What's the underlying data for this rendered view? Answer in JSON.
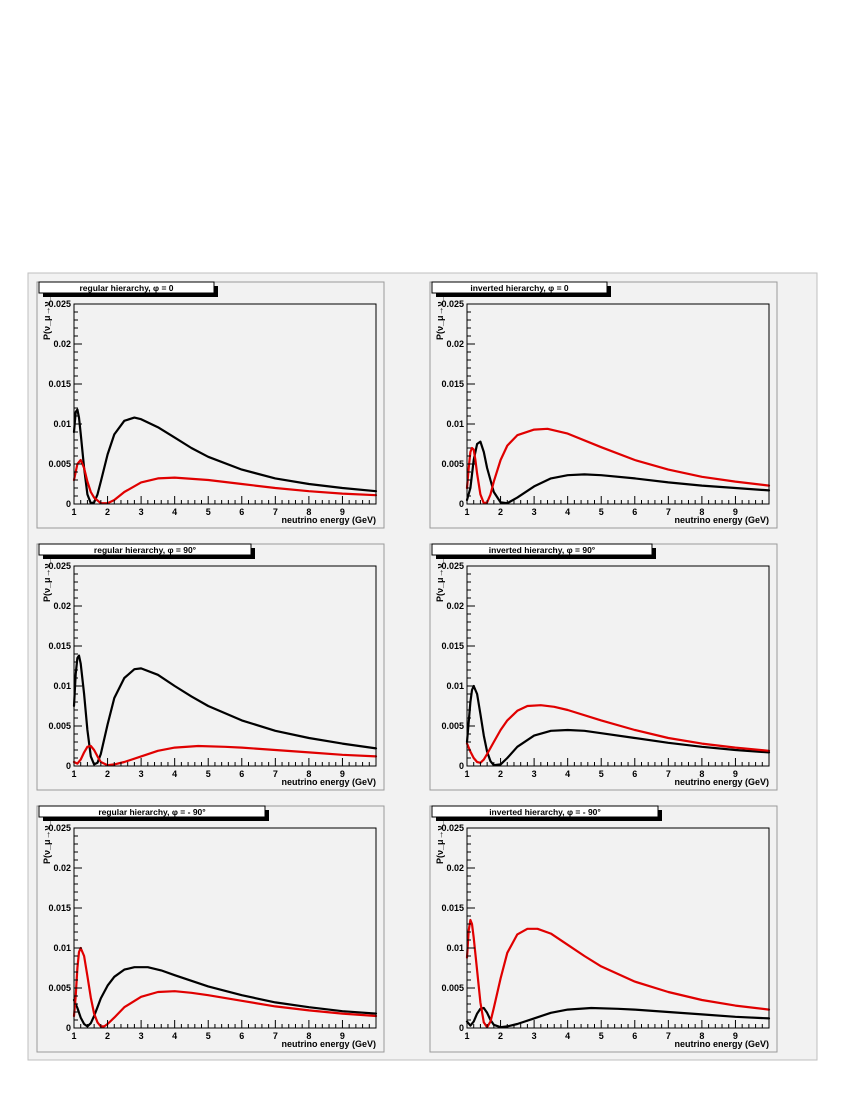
{
  "shared_axes": {
    "xlabel": "neutrino energy (GeV)",
    "ylabel": "P(ν_μ→ν_e)",
    "xlim": [
      1,
      10
    ],
    "ylim": [
      0,
      0.025
    ],
    "x_ticks": [
      "1",
      "2",
      "3",
      "4",
      "5",
      "6",
      "7",
      "8",
      "9"
    ],
    "y_ticks": [
      "0",
      "0.005",
      "0.01",
      "0.015",
      "0.02",
      "0.025"
    ],
    "series_colors": {
      "black": "#000000",
      "red": "#e00000"
    }
  },
  "chart_data": [
    {
      "type": "line",
      "title": "regular hierarchy, φ = 0",
      "xlabel": "neutrino energy (GeV)",
      "ylabel": "P(ν_μ→ν_e)",
      "xlim": [
        1,
        10
      ],
      "ylim": [
        0,
        0.025
      ],
      "series": [
        {
          "color": "#000000",
          "x": [
            1.0,
            1.05,
            1.1,
            1.15,
            1.2,
            1.3,
            1.4,
            1.5,
            1.6,
            1.7,
            1.8,
            2.0,
            2.2,
            2.5,
            2.8,
            3.0,
            3.5,
            4.0,
            4.5,
            5,
            6,
            7,
            8,
            9,
            10
          ],
          "y": [
            0.009,
            0.0115,
            0.0118,
            0.0108,
            0.0088,
            0.0045,
            0.0012,
            0.0001,
            0.0002,
            0.0012,
            0.0028,
            0.0062,
            0.0087,
            0.0104,
            0.0108,
            0.0106,
            0.0096,
            0.0083,
            0.007,
            0.0059,
            0.0043,
            0.0032,
            0.0025,
            0.002,
            0.0016
          ]
        },
        {
          "color": "#e00000",
          "x": [
            1.0,
            1.1,
            1.2,
            1.3,
            1.4,
            1.5,
            1.6,
            1.8,
            2.0,
            2.2,
            2.5,
            3.0,
            3.5,
            4.0,
            5,
            6,
            7,
            8,
            9,
            10
          ],
          "y": [
            0.003,
            0.005,
            0.0055,
            0.0045,
            0.0028,
            0.0015,
            0.0008,
            0.0001,
            0.0001,
            0.0005,
            0.0015,
            0.0027,
            0.0032,
            0.0033,
            0.003,
            0.0025,
            0.002,
            0.0016,
            0.0013,
            0.0011
          ]
        }
      ]
    },
    {
      "type": "line",
      "title": "inverted hierarchy, φ = 0",
      "xlabel": "neutrino energy (GeV)",
      "ylabel": "P(ν_μ→ν_e)",
      "xlim": [
        1,
        10
      ],
      "ylim": [
        0,
        0.025
      ],
      "series": [
        {
          "color": "#000000",
          "x": [
            1.0,
            1.1,
            1.2,
            1.3,
            1.4,
            1.5,
            1.6,
            1.8,
            2.0,
            2.2,
            2.5,
            3.0,
            3.5,
            4.0,
            4.5,
            5,
            6,
            7,
            8,
            9,
            10
          ],
          "y": [
            0.0005,
            0.002,
            0.0055,
            0.0075,
            0.0078,
            0.0065,
            0.0045,
            0.0015,
            0.0002,
            0.0001,
            0.0008,
            0.0022,
            0.0032,
            0.0036,
            0.0037,
            0.0036,
            0.0032,
            0.0027,
            0.0023,
            0.002,
            0.0017
          ]
        },
        {
          "color": "#e00000",
          "x": [
            1.0,
            1.05,
            1.1,
            1.15,
            1.2,
            1.25,
            1.3,
            1.4,
            1.5,
            1.6,
            1.7,
            1.8,
            2.0,
            2.2,
            2.5,
            3.0,
            3.4,
            4.0,
            5,
            6,
            7,
            8,
            9,
            10
          ],
          "y": [
            0.002,
            0.0045,
            0.0065,
            0.007,
            0.0068,
            0.0055,
            0.0038,
            0.0012,
            0.0001,
            0.0002,
            0.0012,
            0.0028,
            0.0055,
            0.0073,
            0.0086,
            0.0093,
            0.0094,
            0.0088,
            0.0071,
            0.0055,
            0.0043,
            0.0034,
            0.0028,
            0.0023
          ]
        }
      ]
    },
    {
      "type": "line",
      "title": "regular hierarchy, φ = 90°",
      "xlabel": "neutrino energy (GeV)",
      "ylabel": "P(ν_μ→ν_e)",
      "xlim": [
        1,
        10
      ],
      "ylim": [
        0,
        0.025
      ],
      "series": [
        {
          "color": "#000000",
          "x": [
            1.0,
            1.05,
            1.1,
            1.15,
            1.2,
            1.3,
            1.4,
            1.5,
            1.6,
            1.7,
            1.8,
            2.0,
            2.2,
            2.5,
            2.8,
            3.0,
            3.5,
            4.0,
            4.5,
            5,
            6,
            7,
            8,
            9,
            10
          ],
          "y": [
            0.0075,
            0.0115,
            0.0135,
            0.0138,
            0.0128,
            0.009,
            0.0045,
            0.0012,
            0.0002,
            0.0004,
            0.0015,
            0.0052,
            0.0085,
            0.011,
            0.0121,
            0.0122,
            0.0114,
            0.01,
            0.0087,
            0.0075,
            0.0057,
            0.0044,
            0.0035,
            0.0028,
            0.0022
          ]
        },
        {
          "color": "#e00000",
          "x": [
            1.0,
            1.1,
            1.2,
            1.3,
            1.4,
            1.5,
            1.6,
            1.7,
            1.8,
            2.0,
            2.2,
            2.5,
            3.0,
            3.5,
            4.0,
            4.7,
            5.5,
            6,
            7,
            8,
            9,
            10
          ],
          "y": [
            0.0005,
            0.0003,
            0.0008,
            0.0017,
            0.0024,
            0.0025,
            0.002,
            0.0012,
            0.0005,
            0.0001,
            0.0002,
            0.0005,
            0.0012,
            0.0019,
            0.0023,
            0.0025,
            0.0024,
            0.0023,
            0.002,
            0.0017,
            0.0014,
            0.0012
          ]
        }
      ]
    },
    {
      "type": "line",
      "title": "inverted hierarchy, φ = 90°",
      "xlabel": "neutrino energy (GeV)",
      "ylabel": "P(ν_μ→ν_e)",
      "xlim": [
        1,
        10
      ],
      "ylim": [
        0,
        0.025
      ],
      "series": [
        {
          "color": "#000000",
          "x": [
            1.0,
            1.05,
            1.1,
            1.15,
            1.2,
            1.3,
            1.4,
            1.5,
            1.6,
            1.7,
            1.8,
            2.0,
            2.2,
            2.5,
            3.0,
            3.5,
            4.0,
            4.5,
            5,
            6,
            7,
            8,
            9,
            10
          ],
          "y": [
            0.003,
            0.0055,
            0.008,
            0.0095,
            0.01,
            0.009,
            0.0065,
            0.0038,
            0.0018,
            0.0006,
            0.0001,
            0.0002,
            0.001,
            0.0024,
            0.0038,
            0.0044,
            0.0045,
            0.0044,
            0.0041,
            0.0035,
            0.0029,
            0.0024,
            0.002,
            0.0017
          ]
        },
        {
          "color": "#e00000",
          "x": [
            1.0,
            1.1,
            1.2,
            1.3,
            1.4,
            1.5,
            1.6,
            1.8,
            2.0,
            2.2,
            2.5,
            2.8,
            3.2,
            3.6,
            4.0,
            5,
            6,
            7,
            8,
            9,
            10
          ],
          "y": [
            0.0028,
            0.0018,
            0.001,
            0.0005,
            0.0004,
            0.0008,
            0.0015,
            0.003,
            0.0045,
            0.0057,
            0.0069,
            0.0075,
            0.0076,
            0.0074,
            0.007,
            0.0057,
            0.0045,
            0.0035,
            0.0028,
            0.0023,
            0.0019
          ]
        }
      ]
    },
    {
      "type": "line",
      "title": "regular hierarchy, φ = - 90°",
      "xlabel": "neutrino energy (GeV)",
      "ylabel": "P(ν_μ→ν_e)",
      "xlim": [
        1,
        10
      ],
      "ylim": [
        0,
        0.025
      ],
      "series": [
        {
          "color": "#000000",
          "x": [
            1.0,
            1.1,
            1.2,
            1.3,
            1.4,
            1.5,
            1.6,
            1.7,
            1.8,
            2.0,
            2.2,
            2.5,
            2.8,
            3.2,
            3.6,
            4.0,
            5,
            6,
            7,
            8,
            9,
            10
          ],
          "y": [
            0.0035,
            0.0025,
            0.0013,
            0.0005,
            0.0002,
            0.0006,
            0.0015,
            0.0026,
            0.0037,
            0.0053,
            0.0064,
            0.0073,
            0.0076,
            0.0076,
            0.0072,
            0.0066,
            0.0052,
            0.0041,
            0.0032,
            0.0026,
            0.0021,
            0.0018
          ]
        },
        {
          "color": "#e00000",
          "x": [
            1.0,
            1.05,
            1.1,
            1.15,
            1.2,
            1.3,
            1.4,
            1.5,
            1.6,
            1.7,
            1.8,
            1.9,
            2.0,
            2.2,
            2.5,
            3.0,
            3.5,
            4.0,
            4.5,
            5,
            6,
            7,
            8,
            9,
            10
          ],
          "y": [
            0.0015,
            0.004,
            0.0075,
            0.0095,
            0.01,
            0.009,
            0.0065,
            0.0038,
            0.0018,
            0.0007,
            0.0002,
            0.0002,
            0.0005,
            0.0013,
            0.0026,
            0.0039,
            0.0045,
            0.0046,
            0.0044,
            0.0041,
            0.0034,
            0.0027,
            0.0022,
            0.0018,
            0.0015
          ]
        }
      ]
    },
    {
      "type": "line",
      "title": "inverted hierarchy, φ = - 90°",
      "xlabel": "neutrino energy (GeV)",
      "ylabel": "P(ν_μ→ν_e)",
      "xlim": [
        1,
        10
      ],
      "ylim": [
        0,
        0.025
      ],
      "series": [
        {
          "color": "#000000",
          "x": [
            1.0,
            1.1,
            1.2,
            1.3,
            1.4,
            1.5,
            1.6,
            1.7,
            1.8,
            2.0,
            2.2,
            2.5,
            3.0,
            3.5,
            4.0,
            4.7,
            5.5,
            6,
            7,
            8,
            9,
            10
          ],
          "y": [
            0.0008,
            0.0003,
            0.0008,
            0.0018,
            0.0024,
            0.0025,
            0.0019,
            0.001,
            0.0004,
            0.0001,
            0.0002,
            0.0005,
            0.0012,
            0.0019,
            0.0023,
            0.0025,
            0.0024,
            0.0023,
            0.002,
            0.0017,
            0.0014,
            0.0012
          ]
        },
        {
          "color": "#e00000",
          "x": [
            1.0,
            1.05,
            1.1,
            1.15,
            1.2,
            1.3,
            1.4,
            1.5,
            1.6,
            1.7,
            1.8,
            2.0,
            2.2,
            2.5,
            2.8,
            3.1,
            3.5,
            4.0,
            4.5,
            5,
            6,
            7,
            8,
            9,
            10
          ],
          "y": [
            0.0088,
            0.0122,
            0.0135,
            0.013,
            0.0113,
            0.0072,
            0.0032,
            0.0007,
            0.0001,
            0.0008,
            0.0025,
            0.0062,
            0.0094,
            0.0117,
            0.0124,
            0.0124,
            0.0118,
            0.0104,
            0.009,
            0.0077,
            0.0058,
            0.0045,
            0.0035,
            0.0028,
            0.0023
          ]
        }
      ]
    }
  ]
}
